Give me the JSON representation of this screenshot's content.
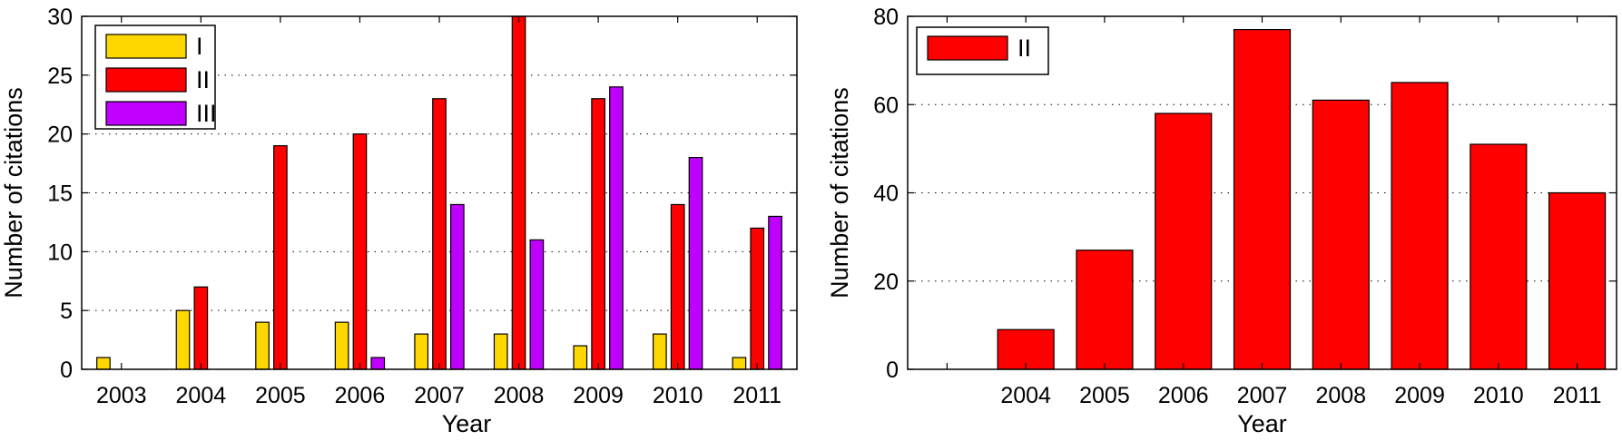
{
  "chart_data": [
    {
      "type": "bar",
      "categories": [
        "2003",
        "2004",
        "2005",
        "2006",
        "2007",
        "2008",
        "2009",
        "2010",
        "2011"
      ],
      "series": [
        {
          "name": "I",
          "color": "#FFD700",
          "values": [
            1,
            5,
            4,
            4,
            3,
            3,
            2,
            3,
            1
          ]
        },
        {
          "name": "II",
          "color": "#FF0000",
          "values": [
            0,
            7,
            19,
            20,
            23,
            30,
            23,
            14,
            12
          ]
        },
        {
          "name": "III",
          "color": "#BF00FF",
          "values": [
            0,
            0,
            0,
            1,
            14,
            11,
            24,
            18,
            13
          ]
        }
      ],
      "xlabel": "Year",
      "ylabel": "Number of citations",
      "ylim": [
        0,
        30
      ],
      "yticks": [
        "0",
        "5",
        "10",
        "15",
        "20",
        "25",
        "30"
      ],
      "grid": "horizontal dotted",
      "legend": "top-left"
    },
    {
      "type": "bar",
      "categories": [
        "",
        "2004",
        "2005",
        "2006",
        "2007",
        "2008",
        "2009",
        "2010",
        "2011"
      ],
      "series": [
        {
          "name": "II",
          "color": "#FF0000",
          "values": [
            0,
            9,
            27,
            58,
            77,
            61,
            65,
            51,
            40
          ]
        }
      ],
      "xlabel": "Year",
      "ylabel": "Number of citations",
      "ylim": [
        0,
        80
      ],
      "yticks": [
        "0",
        "20",
        "40",
        "60",
        "80"
      ],
      "grid": "horizontal dotted",
      "legend": "top-left"
    }
  ]
}
